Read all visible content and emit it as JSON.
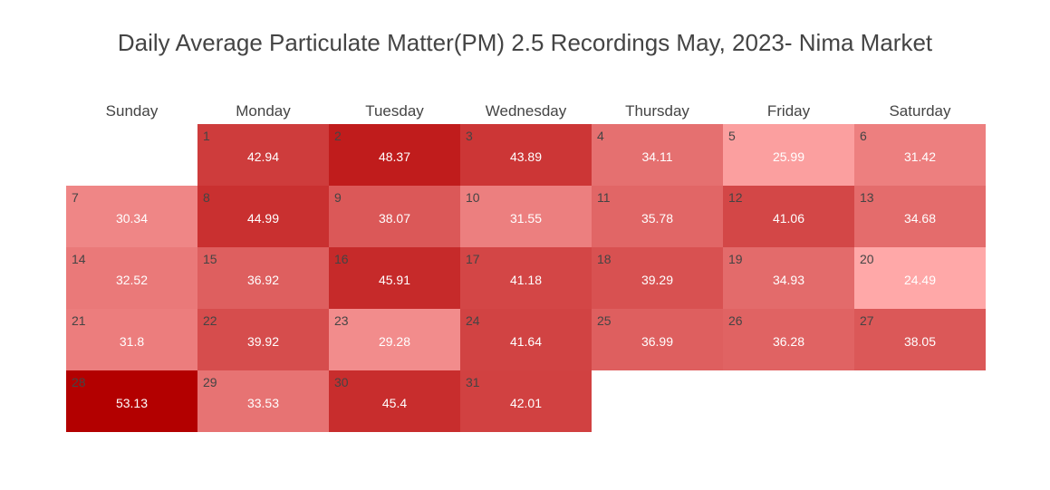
{
  "chart_data": {
    "type": "heatmap",
    "title": "Daily Average Particulate Matter(PM) 2.5 Recordings May, 2023- Nima Market",
    "weekdays": [
      "Sunday",
      "Monday",
      "Tuesday",
      "Wednesday",
      "Thursday",
      "Friday",
      "Saturday"
    ],
    "first_weekday_index": 1,
    "color_scale": {
      "low": "#ffa8a8",
      "high": "#b30000",
      "min": 24.49,
      "max": 53.13
    },
    "days": [
      {
        "day": "1",
        "value": 42.94
      },
      {
        "day": "2",
        "value": 48.37
      },
      {
        "day": "3",
        "value": 43.89
      },
      {
        "day": "4",
        "value": 34.11
      },
      {
        "day": "5",
        "value": 25.99
      },
      {
        "day": "6",
        "value": 31.42
      },
      {
        "day": "7",
        "value": 30.34
      },
      {
        "day": "8",
        "value": 44.99
      },
      {
        "day": "9",
        "value": 38.07
      },
      {
        "day": "10",
        "value": 31.55
      },
      {
        "day": "11",
        "value": 35.78
      },
      {
        "day": "12",
        "value": 41.06
      },
      {
        "day": "13",
        "value": 34.68
      },
      {
        "day": "14",
        "value": 32.52
      },
      {
        "day": "15",
        "value": 36.92
      },
      {
        "day": "16",
        "value": 45.91
      },
      {
        "day": "17",
        "value": 41.18
      },
      {
        "day": "18",
        "value": 39.29
      },
      {
        "day": "19",
        "value": 34.93
      },
      {
        "day": "20",
        "value": 24.49
      },
      {
        "day": "21",
        "value": 31.8
      },
      {
        "day": "22",
        "value": 39.92
      },
      {
        "day": "23",
        "value": 29.28
      },
      {
        "day": "24",
        "value": 41.64
      },
      {
        "day": "25",
        "value": 36.99
      },
      {
        "day": "26",
        "value": 36.28
      },
      {
        "day": "27",
        "value": 38.05
      },
      {
        "day": "28",
        "value": 53.13
      },
      {
        "day": "29",
        "value": 33.53
      },
      {
        "day": "30",
        "value": 45.4
      },
      {
        "day": "31",
        "value": 42.01
      }
    ]
  }
}
